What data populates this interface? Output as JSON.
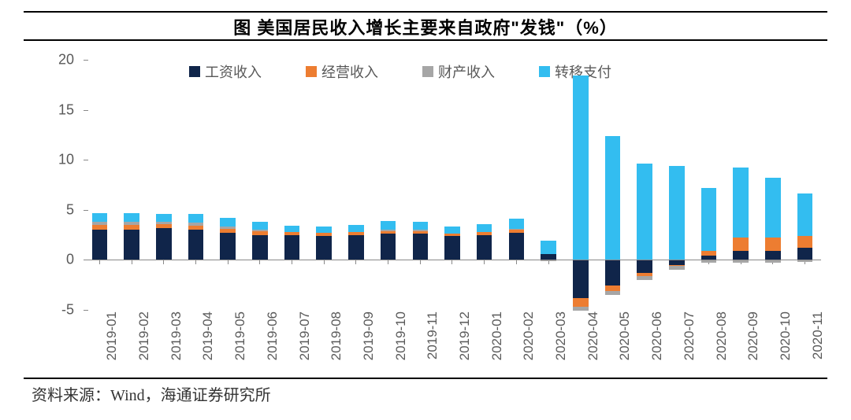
{
  "title": "图 美国居民收入增长主要来自政府\"发钱\"（%）",
  "source": "资料来源：Wind，海通证券研究所",
  "chart": {
    "type": "stacked_bar",
    "background_color": "#ffffff",
    "axis_color": "#888888",
    "axis_label_color": "#595959",
    "legend_font_size": 18,
    "axis_font_size": 18,
    "title_font_size": 22,
    "bar_width": 0.48,
    "ylim": [
      -5,
      20
    ],
    "ytick_step": 5,
    "yticks": [
      -5,
      0,
      5,
      10,
      15,
      20
    ],
    "series": [
      {
        "key": "wage",
        "label": "工资收入",
        "color": "#10254a"
      },
      {
        "key": "business",
        "label": "经营收入",
        "color": "#ed7d31"
      },
      {
        "key": "property",
        "label": "财产收入",
        "color": "#a6a6a6"
      },
      {
        "key": "transfer",
        "label": "转移支付",
        "color": "#33bdf0"
      }
    ],
    "categories": [
      "2019-01",
      "2019-02",
      "2019-03",
      "2019-04",
      "2019-05",
      "2019-06",
      "2019-07",
      "2019-08",
      "2019-09",
      "2019-10",
      "2019-11",
      "2019-12",
      "2020-01",
      "2020-02",
      "2020-03",
      "2020-04",
      "2020-05",
      "2020-06",
      "2020-07",
      "2020-08",
      "2020-09",
      "2020-10",
      "2020-11"
    ],
    "data": [
      {
        "wage": 3.0,
        "business": 0.5,
        "property": 0.3,
        "transfer": 0.9
      },
      {
        "wage": 3.0,
        "business": 0.5,
        "property": 0.3,
        "transfer": 0.9
      },
      {
        "wage": 3.2,
        "business": 0.4,
        "property": 0.2,
        "transfer": 0.8
      },
      {
        "wage": 3.0,
        "business": 0.4,
        "property": 0.3,
        "transfer": 0.9
      },
      {
        "wage": 2.7,
        "business": 0.4,
        "property": 0.2,
        "transfer": 0.9
      },
      {
        "wage": 2.5,
        "business": 0.4,
        "property": 0.1,
        "transfer": 0.8
      },
      {
        "wage": 2.5,
        "business": 0.3,
        "property": 0.0,
        "transfer": 0.6
      },
      {
        "wage": 2.4,
        "business": 0.3,
        "property": 0.0,
        "transfer": 0.6
      },
      {
        "wage": 2.5,
        "business": 0.3,
        "property": 0.0,
        "transfer": 0.7
      },
      {
        "wage": 2.6,
        "business": 0.3,
        "property": 0.1,
        "transfer": 0.9
      },
      {
        "wage": 2.6,
        "business": 0.3,
        "property": 0.1,
        "transfer": 0.8
      },
      {
        "wage": 2.4,
        "business": 0.2,
        "property": 0.0,
        "transfer": 0.7
      },
      {
        "wage": 2.5,
        "business": 0.3,
        "property": 0.0,
        "transfer": 0.8
      },
      {
        "wage": 2.7,
        "business": 0.3,
        "property": 0.1,
        "transfer": 1.0
      },
      {
        "wage": 0.6,
        "business": 0.0,
        "property": -0.1,
        "transfer": 1.3
      },
      {
        "wage": -3.8,
        "business": -0.9,
        "property": -0.4,
        "transfer": 18.4
      },
      {
        "wage": -2.6,
        "business": -0.5,
        "property": -0.4,
        "transfer": 12.4
      },
      {
        "wage": -1.3,
        "business": -0.3,
        "property": -0.4,
        "transfer": 9.6
      },
      {
        "wage": -0.5,
        "business": -0.1,
        "property": -0.4,
        "transfer": 9.4
      },
      {
        "wage": 0.4,
        "business": 0.5,
        "property": -0.3,
        "transfer": 6.3
      },
      {
        "wage": 0.9,
        "business": 1.3,
        "property": -0.3,
        "transfer": 7.0
      },
      {
        "wage": 0.9,
        "business": 1.3,
        "property": -0.3,
        "transfer": 6.0
      },
      {
        "wage": 1.2,
        "business": 1.2,
        "property": -0.2,
        "transfer": 4.2
      }
    ]
  }
}
